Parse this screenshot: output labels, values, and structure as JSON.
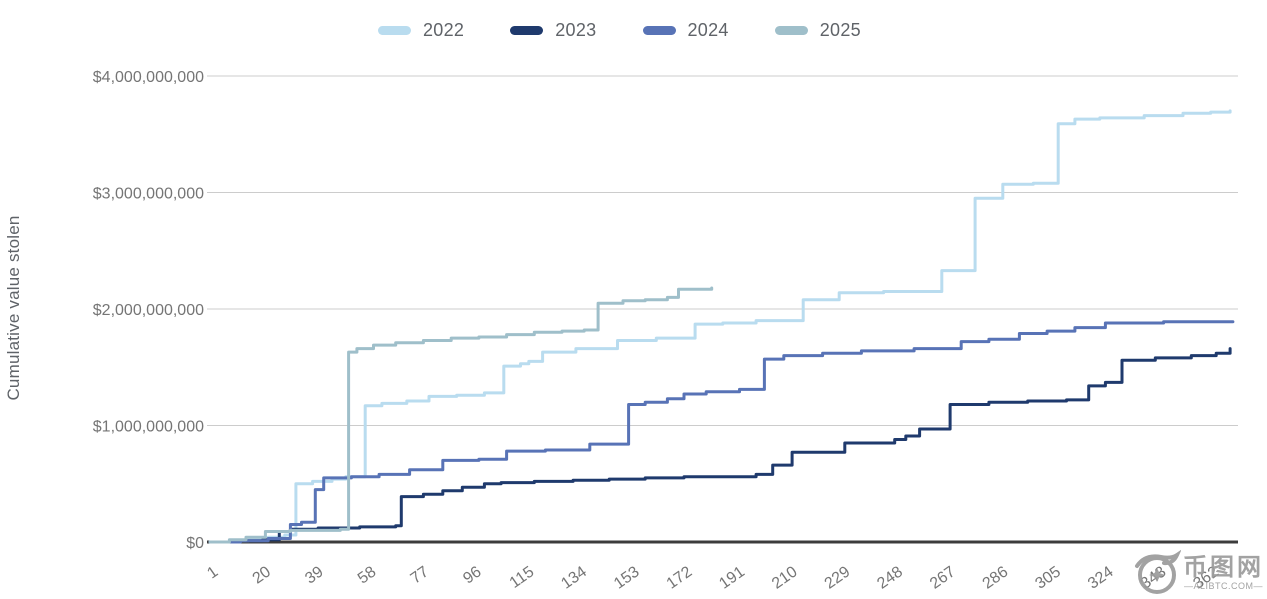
{
  "watermark": {
    "site_name": "币图网",
    "domain_text": "—ALIBTC.COM—"
  },
  "chart_data": {
    "type": "line",
    "step": true,
    "title": "",
    "xlabel": "",
    "ylabel": "Cumulative value stolen",
    "x_unit": "day of year",
    "value_unit": "USD billions",
    "xlim": [
      1,
      371
    ],
    "ylim": [
      0,
      4
    ],
    "grid": true,
    "legend_position": "top",
    "x_ticks": [
      1,
      20,
      39,
      58,
      77,
      96,
      115,
      134,
      153,
      172,
      191,
      210,
      229,
      248,
      267,
      286,
      305,
      324,
      343,
      362
    ],
    "y_ticks": [
      0,
      1,
      2,
      3,
      4
    ],
    "y_tick_labels": [
      "$0",
      "$1,000,000,000",
      "$2,000,000,000",
      "$3,000,000,000",
      "$4,000,000,000"
    ],
    "series": [
      {
        "name": "2022",
        "color": "#b9dcef",
        "points": [
          [
            1,
            0
          ],
          [
            8,
            0.01
          ],
          [
            15,
            0.02
          ],
          [
            22,
            0.04
          ],
          [
            28,
            0.06
          ],
          [
            32,
            0.5
          ],
          [
            38,
            0.52
          ],
          [
            45,
            0.54
          ],
          [
            50,
            0.56
          ],
          [
            57,
            1.17
          ],
          [
            63,
            1.19
          ],
          [
            72,
            1.21
          ],
          [
            80,
            1.25
          ],
          [
            90,
            1.26
          ],
          [
            100,
            1.28
          ],
          [
            107,
            1.51
          ],
          [
            113,
            1.53
          ],
          [
            116,
            1.55
          ],
          [
            121,
            1.63
          ],
          [
            133,
            1.66
          ],
          [
            148,
            1.73
          ],
          [
            162,
            1.75
          ],
          [
            176,
            1.87
          ],
          [
            186,
            1.88
          ],
          [
            198,
            1.9
          ],
          [
            215,
            2.08
          ],
          [
            228,
            2.14
          ],
          [
            244,
            2.15
          ],
          [
            265,
            2.33
          ],
          [
            277,
            2.95
          ],
          [
            287,
            3.07
          ],
          [
            298,
            3.08
          ],
          [
            307,
            3.59
          ],
          [
            313,
            3.63
          ],
          [
            322,
            3.64
          ],
          [
            338,
            3.66
          ],
          [
            352,
            3.68
          ],
          [
            362,
            3.69
          ],
          [
            369,
            3.7
          ]
        ]
      },
      {
        "name": "2023",
        "color": "#1f3a6d",
        "points": [
          [
            1,
            0
          ],
          [
            12,
            0.01
          ],
          [
            20,
            0.02
          ],
          [
            26,
            0.09
          ],
          [
            30,
            0.11
          ],
          [
            40,
            0.12
          ],
          [
            55,
            0.13
          ],
          [
            68,
            0.14
          ],
          [
            70,
            0.39
          ],
          [
            78,
            0.41
          ],
          [
            85,
            0.44
          ],
          [
            92,
            0.47
          ],
          [
            100,
            0.5
          ],
          [
            106,
            0.51
          ],
          [
            118,
            0.52
          ],
          [
            132,
            0.53
          ],
          [
            145,
            0.54
          ],
          [
            158,
            0.55
          ],
          [
            172,
            0.56
          ],
          [
            186,
            0.56
          ],
          [
            198,
            0.58
          ],
          [
            204,
            0.66
          ],
          [
            211,
            0.77
          ],
          [
            230,
            0.85
          ],
          [
            248,
            0.88
          ],
          [
            252,
            0.91
          ],
          [
            257,
            0.97
          ],
          [
            268,
            1.18
          ],
          [
            282,
            1.2
          ],
          [
            296,
            1.21
          ],
          [
            310,
            1.22
          ],
          [
            318,
            1.34
          ],
          [
            324,
            1.37
          ],
          [
            330,
            1.56
          ],
          [
            342,
            1.58
          ],
          [
            355,
            1.6
          ],
          [
            364,
            1.62
          ],
          [
            369,
            1.66
          ]
        ]
      },
      {
        "name": "2024",
        "color": "#5873b6",
        "points": [
          [
            1,
            0
          ],
          [
            12,
            0.01
          ],
          [
            22,
            0.03
          ],
          [
            30,
            0.15
          ],
          [
            34,
            0.17
          ],
          [
            39,
            0.45
          ],
          [
            42,
            0.55
          ],
          [
            52,
            0.56
          ],
          [
            62,
            0.58
          ],
          [
            73,
            0.62
          ],
          [
            85,
            0.7
          ],
          [
            98,
            0.71
          ],
          [
            108,
            0.78
          ],
          [
            122,
            0.79
          ],
          [
            138,
            0.84
          ],
          [
            152,
            1.18
          ],
          [
            158,
            1.2
          ],
          [
            166,
            1.23
          ],
          [
            172,
            1.27
          ],
          [
            180,
            1.29
          ],
          [
            192,
            1.31
          ],
          [
            201,
            1.57
          ],
          [
            208,
            1.6
          ],
          [
            222,
            1.62
          ],
          [
            236,
            1.64
          ],
          [
            255,
            1.66
          ],
          [
            272,
            1.72
          ],
          [
            282,
            1.74
          ],
          [
            293,
            1.79
          ],
          [
            303,
            1.81
          ],
          [
            313,
            1.84
          ],
          [
            324,
            1.88
          ],
          [
            345,
            1.89
          ],
          [
            370,
            1.89
          ]
        ]
      },
      {
        "name": "2025",
        "color": "#9fbfca",
        "points": [
          [
            1,
            0
          ],
          [
            8,
            0.02
          ],
          [
            14,
            0.04
          ],
          [
            21,
            0.09
          ],
          [
            30,
            0.1
          ],
          [
            42,
            0.1
          ],
          [
            48,
            0.11
          ],
          [
            51,
            1.63
          ],
          [
            54,
            1.66
          ],
          [
            60,
            1.69
          ],
          [
            68,
            1.71
          ],
          [
            78,
            1.73
          ],
          [
            88,
            1.75
          ],
          [
            98,
            1.76
          ],
          [
            108,
            1.78
          ],
          [
            118,
            1.8
          ],
          [
            128,
            1.81
          ],
          [
            136,
            1.82
          ],
          [
            141,
            2.05
          ],
          [
            150,
            2.07
          ],
          [
            158,
            2.08
          ],
          [
            166,
            2.1
          ],
          [
            170,
            2.17
          ],
          [
            178,
            2.17
          ],
          [
            182,
            2.18
          ]
        ]
      }
    ]
  }
}
